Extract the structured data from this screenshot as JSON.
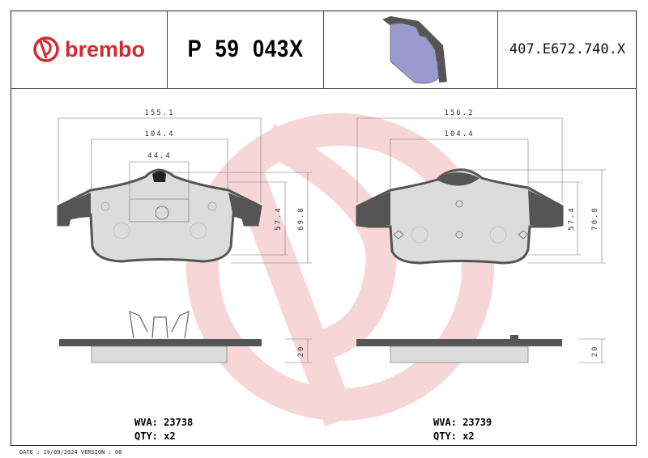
{
  "header": {
    "brand": "brembo",
    "part_number": "P 59 043X",
    "reference": "407.E672.740.X"
  },
  "left_pad": {
    "dimensions": {
      "overall_width": "155.1",
      "inner_width": "104.4",
      "sensor_width": "44.4",
      "height_inner": "57.4",
      "height_overall": "69.8",
      "thickness": "20"
    },
    "wva_label": "WVA: 23738",
    "qty_label": "QTY: x2"
  },
  "right_pad": {
    "dimensions": {
      "overall_width": "156.2",
      "inner_width": "104.4",
      "height_inner": "57.4",
      "height_overall": "70.8",
      "thickness": "20"
    },
    "wva_label": "WVA: 23739",
    "qty_label": "QTY: x2"
  },
  "footer": {
    "date_version": "DATE : 19/09/2024 VERSION : 00"
  },
  "colors": {
    "brand_red": "#d42a2f",
    "backing_plate": "#555555",
    "friction_material": "#dcdcdc",
    "watermark": "#f6d5d7",
    "pad_3d": "#9a9ad0"
  }
}
